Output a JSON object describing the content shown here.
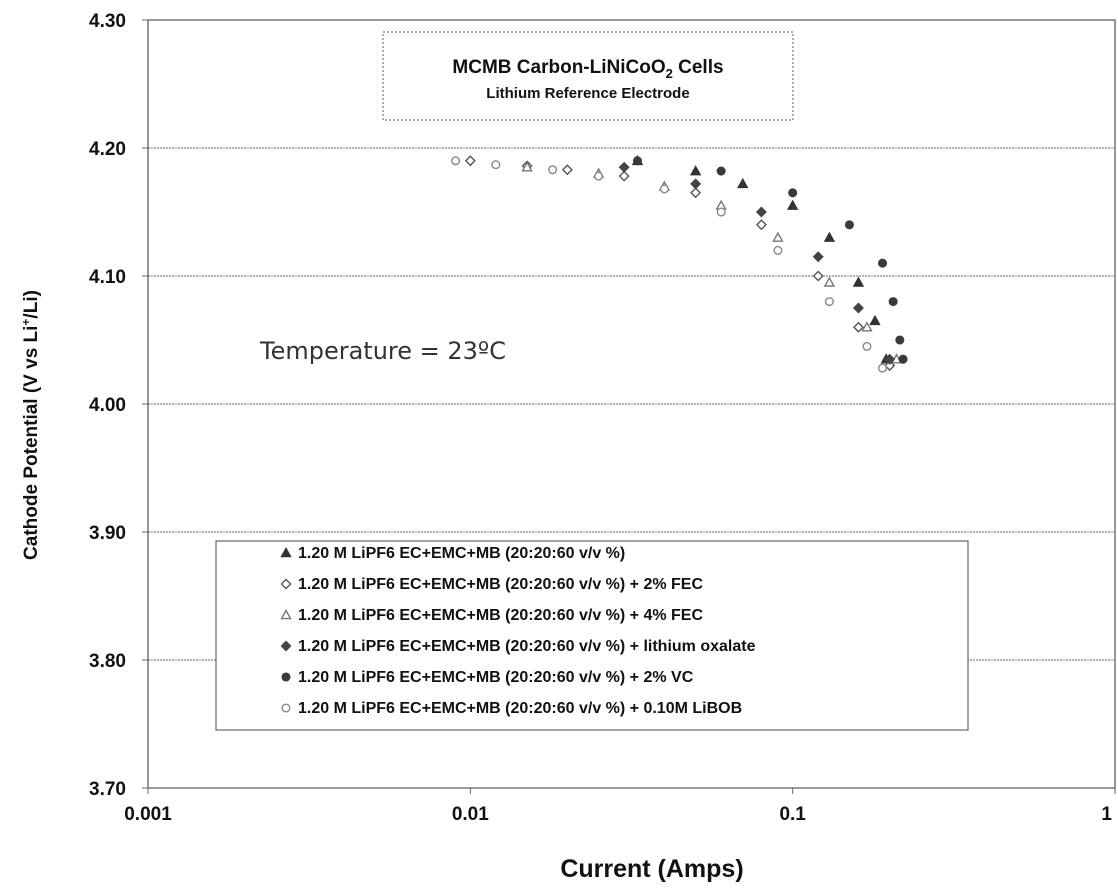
{
  "chart_data": {
    "type": "scatter",
    "title": "MCMB Carbon-LiNiCoO",
    "title_subscript": "2",
    "title_suffix": " Cells",
    "subtitle": "Lithium Reference Electrode",
    "xlabel": "Current (Amps)",
    "ylabel_prefix": "Cathode Potential (V vs Li",
    "ylabel_sup": "+",
    "ylabel_suffix": "/Li)",
    "x_scale": "log",
    "xlim": [
      0.001,
      1
    ],
    "ylim": [
      3.7,
      4.3
    ],
    "x_ticks": [
      0.001,
      0.01,
      0.1,
      1
    ],
    "x_tick_labels": [
      "0.001",
      "0.01",
      "0.1",
      "1"
    ],
    "y_ticks": [
      3.7,
      3.8,
      3.9,
      4.0,
      4.1,
      4.2,
      4.3
    ],
    "y_tick_labels": [
      "3.70",
      "3.80",
      "3.90",
      "4.00",
      "4.10",
      "4.20",
      "4.30"
    ],
    "grid": "horizontal",
    "legend_position": "bottom-center",
    "annotation": "Temperature = 23ºC",
    "series": [
      {
        "name": "1.20 M LiPF6  EC+EMC+MB (20:20:60 v/v %)",
        "marker": "triangle",
        "color": "#333333",
        "x": [
          0.033,
          0.05,
          0.07,
          0.1,
          0.13,
          0.16,
          0.18,
          0.195
        ],
        "y": [
          4.19,
          4.182,
          4.172,
          4.155,
          4.13,
          4.095,
          4.065,
          4.035
        ]
      },
      {
        "name": "1.20 M LiPF6  EC+EMC+MB (20:20:60 v/v %) + 2% FEC",
        "marker": "diamond-open",
        "color": "#555555",
        "x": [
          0.01,
          0.015,
          0.02,
          0.03,
          0.05,
          0.08,
          0.12,
          0.16,
          0.2
        ],
        "y": [
          4.19,
          4.186,
          4.183,
          4.178,
          4.165,
          4.14,
          4.1,
          4.06,
          4.03
        ]
      },
      {
        "name": "1.20 M LiPF6  EC+EMC+MB (20:20:60 v/v %) + 4% FEC",
        "marker": "triangle-open",
        "color": "#777777",
        "x": [
          0.015,
          0.025,
          0.04,
          0.06,
          0.09,
          0.13,
          0.17,
          0.21
        ],
        "y": [
          4.185,
          4.18,
          4.17,
          4.155,
          4.13,
          4.095,
          4.06,
          4.035
        ]
      },
      {
        "name": "1.20 M LiPF6  EC+EMC+MB (20:20:60 v/v %) + lithium oxalate",
        "marker": "diamond",
        "color": "#444444",
        "x": [
          0.03,
          0.05,
          0.08,
          0.12,
          0.16,
          0.2
        ],
        "y": [
          4.185,
          4.172,
          4.15,
          4.115,
          4.075,
          4.035
        ]
      },
      {
        "name": "1.20 M LiPF6  EC+EMC+MB (20:20:60 v/v %) + 2% VC",
        "marker": "circle",
        "color": "#3a3a3a",
        "x": [
          0.033,
          0.06,
          0.1,
          0.15,
          0.19,
          0.205,
          0.215,
          0.22
        ],
        "y": [
          4.19,
          4.182,
          4.165,
          4.14,
          4.11,
          4.08,
          4.05,
          4.035
        ]
      },
      {
        "name": "1.20 M LiPF6  EC+EMC+MB (20:20:60 v/v %) + 0.10M LiBOB",
        "marker": "circle-open",
        "color": "#888888",
        "x": [
          0.009,
          0.012,
          0.018,
          0.025,
          0.04,
          0.06,
          0.09,
          0.13,
          0.17,
          0.19
        ],
        "y": [
          4.19,
          4.187,
          4.183,
          4.178,
          4.168,
          4.15,
          4.12,
          4.08,
          4.045,
          4.028
        ]
      }
    ]
  }
}
